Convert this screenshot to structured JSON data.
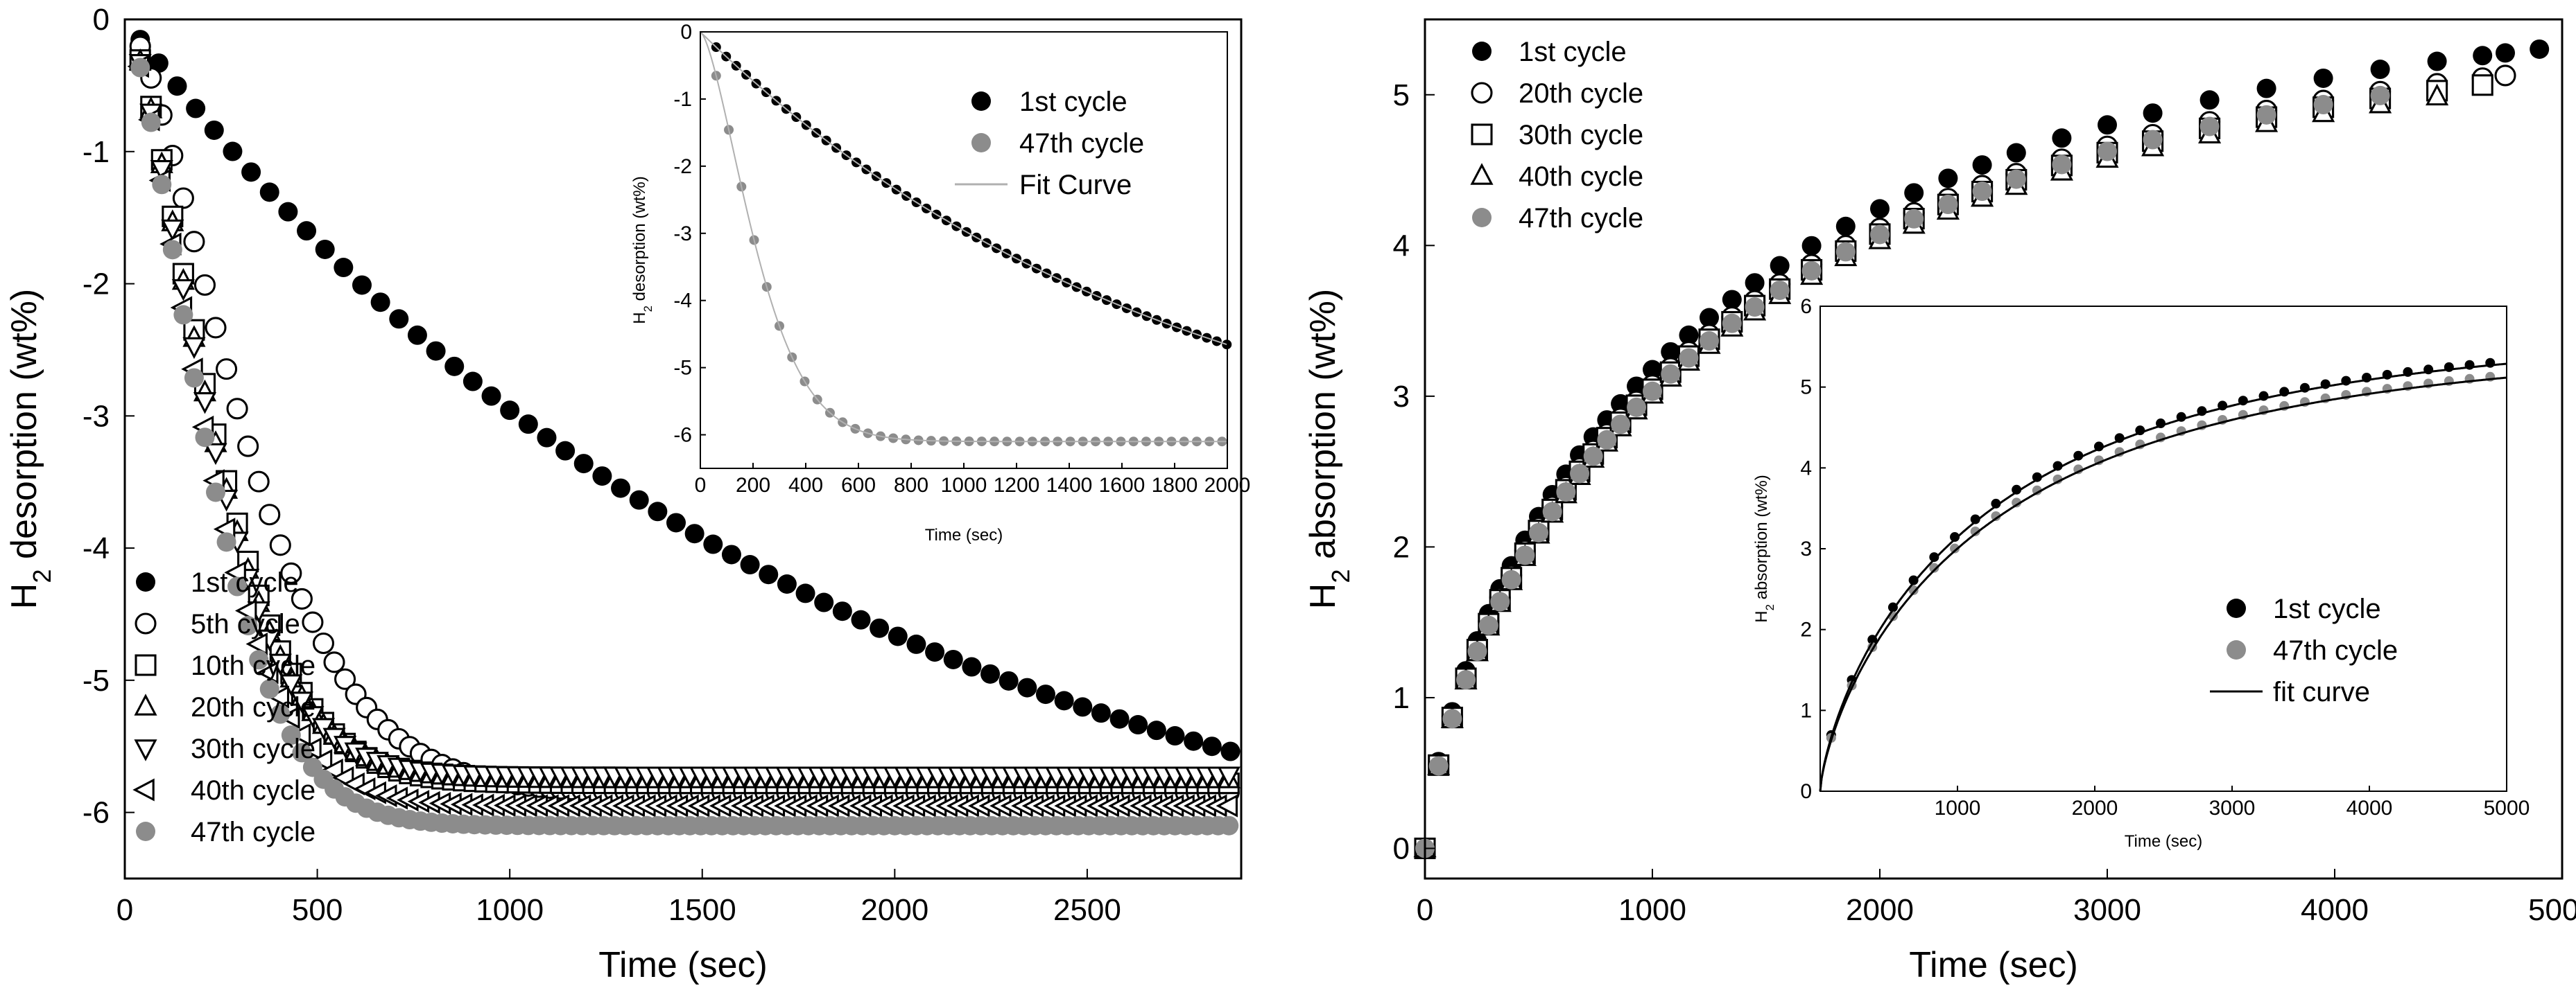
{
  "chart_data": [
    {
      "id": "left-main",
      "type": "scatter",
      "xlabel": "Time (sec)",
      "ylabel": "H2 desorption (wt%)",
      "ylabel_main": "H",
      "ylabel_sub": "2",
      "ylabel_rest": " desorption (wt%)",
      "xlim": [
        0,
        2900
      ],
      "ylim": [
        -6.5,
        0
      ],
      "xticks": [
        0,
        500,
        1000,
        1500,
        2000,
        2500
      ],
      "yticks": [
        0,
        -1,
        -2,
        -3,
        -4,
        -5,
        -6
      ],
      "legend_position": "bottom-left",
      "series": [
        {
          "name": "1st cycle",
          "marker": "filled-circle",
          "color": "#000000",
          "model": "linear",
          "k": 0.00205,
          "ymax": 5.56
        },
        {
          "name": "5th cycle",
          "marker": "open-circle",
          "color": "#000000",
          "model": "sigmoid",
          "k": 0.0027,
          "ymax": 5.85
        },
        {
          "name": "10th cycle",
          "marker": "open-square",
          "color": "#000000",
          "model": "sigmoid",
          "k": 0.0036,
          "ymax": 5.78
        },
        {
          "name": "20th cycle",
          "marker": "open-triangle-up",
          "color": "#000000",
          "model": "sigmoid",
          "k": 0.0037,
          "ymax": 5.75
        },
        {
          "name": "30th cycle",
          "marker": "open-triangle-down",
          "color": "#000000",
          "model": "sigmoid",
          "k": 0.0038,
          "ymax": 5.72
        },
        {
          "name": "40th cycle",
          "marker": "open-triangle-left",
          "color": "#000000",
          "model": "sigmoid",
          "k": 0.0039,
          "ymax": 5.95
        },
        {
          "name": "47th cycle",
          "marker": "filled-circle",
          "color": "#8c8c8c",
          "model": "sigmoid",
          "k": 0.0039,
          "ymax": 6.1
        }
      ]
    },
    {
      "id": "left-inset",
      "type": "scatter",
      "xlabel": "Time (sec)",
      "ylabel": "H2 desorption (wt%)",
      "ylabel_main": "H",
      "ylabel_sub": "2",
      "ylabel_rest": " desorption (wt%)",
      "xlim": [
        0,
        2000
      ],
      "ylim": [
        -6.5,
        0
      ],
      "xticks": [
        0,
        200,
        400,
        600,
        800,
        1000,
        1200,
        1400,
        1600,
        1800,
        2000
      ],
      "yticks": [
        0,
        -1,
        -2,
        -3,
        -4,
        -5,
        -6
      ],
      "legend_position": "top-right",
      "series": [
        {
          "name": "1st cycle",
          "marker": "filled-circle",
          "color": "#000000",
          "model": "linear",
          "k": 0.00205,
          "ymax": 5.56
        },
        {
          "name": "47th cycle",
          "marker": "filled-circle",
          "color": "#8c8c8c",
          "model": "sigmoid",
          "k": 0.0039,
          "ymax": 6.1
        },
        {
          "name": "Fit Curve",
          "marker": "line",
          "color": "#b0b0b0"
        }
      ]
    },
    {
      "id": "right-main",
      "type": "scatter",
      "xlabel": "Time (sec)",
      "ylabel": "H2 absorption (wt%)",
      "ylabel_main": "H",
      "ylabel_sub": "2",
      "ylabel_rest": " absorption (wt%)",
      "xlim": [
        0,
        5000
      ],
      "ylim": [
        -0.2,
        5.5
      ],
      "xticks": [
        0,
        1000,
        2000,
        3000,
        4000,
        5000
      ],
      "yticks": [
        0,
        1,
        2,
        3,
        4,
        5
      ],
      "legend_position": "top-left",
      "series": [
        {
          "name": "1st cycle",
          "marker": "filled-circle",
          "color": "#000000",
          "ymax": 5.65,
          "k": 0.00075
        },
        {
          "name": "20th cycle",
          "marker": "open-circle",
          "color": "#000000",
          "ymax": 5.5,
          "k": 0.00074
        },
        {
          "name": "30th cycle",
          "marker": "open-square",
          "color": "#000000",
          "ymax": 5.45,
          "k": 0.00074
        },
        {
          "name": "40th cycle",
          "marker": "open-triangle-up",
          "color": "#000000",
          "ymax": 5.42,
          "k": 0.00073
        },
        {
          "name": "47th cycle",
          "marker": "filled-circle",
          "color": "#8c8c8c",
          "ymax": 5.5,
          "k": 0.00072
        }
      ]
    },
    {
      "id": "right-inset",
      "type": "scatter",
      "xlabel": "Time (sec)",
      "ylabel": "H2 absorption (wt%)",
      "ylabel_main": "H",
      "ylabel_sub": "2",
      "ylabel_rest": " absorption (wt%)",
      "xlim": [
        0,
        5000
      ],
      "ylim": [
        0,
        6
      ],
      "xticks": [
        1000,
        2000,
        3000,
        4000,
        5000
      ],
      "yticks": [
        0,
        1,
        2,
        3,
        4,
        5,
        6
      ],
      "legend_position": "bottom-right",
      "series": [
        {
          "name": "1st cycle",
          "marker": "filled-circle",
          "color": "#000000",
          "ymax": 5.65,
          "k": 0.00075
        },
        {
          "name": "47th cycle",
          "marker": "filled-circle",
          "color": "#8c8c8c",
          "ymax": 5.5,
          "k": 0.00072
        },
        {
          "name": "fit curve",
          "marker": "line",
          "color": "#000000"
        }
      ]
    }
  ]
}
